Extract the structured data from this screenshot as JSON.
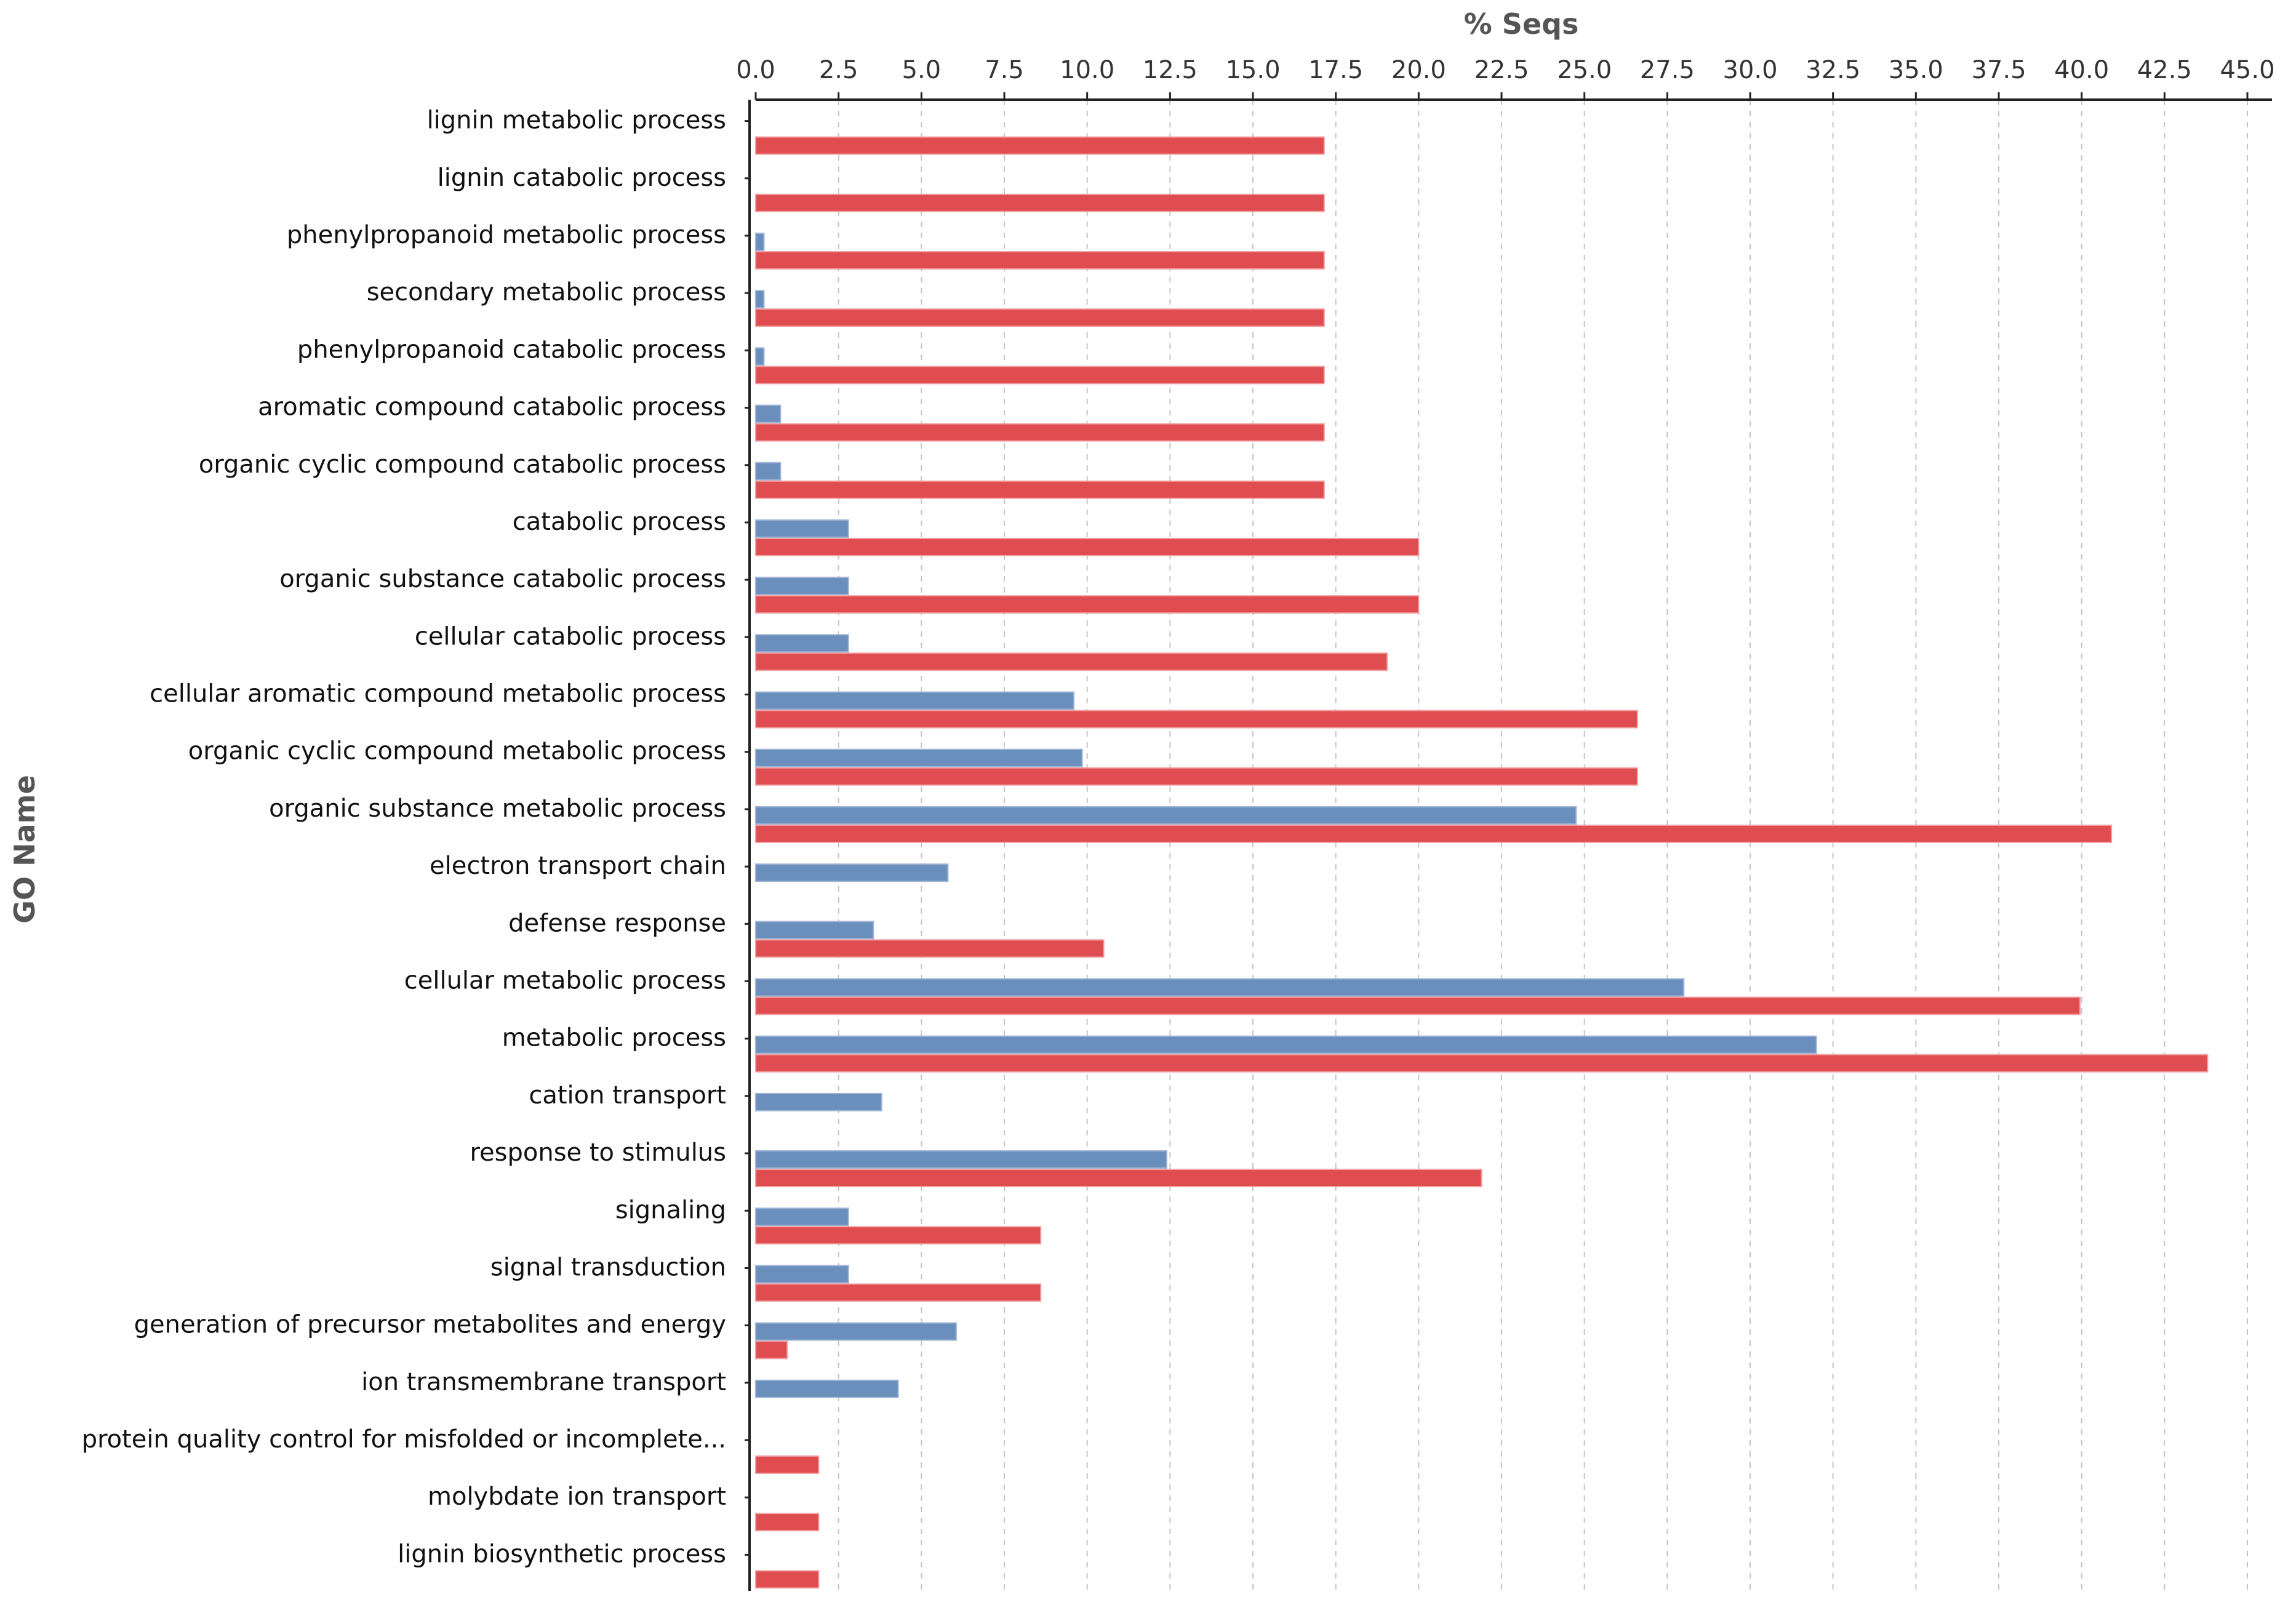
{
  "chart_data": {
    "type": "bar",
    "orientation": "horizontal",
    "xlabel": "% Seqs",
    "ylabel": "GO Name",
    "xlim": [
      0,
      45
    ],
    "xticks": [
      "0.0",
      "2.5",
      "5.0",
      "7.5",
      "10.0",
      "12.5",
      "15.0",
      "17.5",
      "20.0",
      "22.5",
      "25.0",
      "27.5",
      "30.0",
      "32.5",
      "35.0",
      "37.5",
      "40.0",
      "42.5",
      "45.0"
    ],
    "grid": "vertical dashed",
    "categories": [
      "lignin metabolic process",
      "lignin catabolic process",
      "phenylpropanoid metabolic process",
      "secondary metabolic process",
      "phenylpropanoid catabolic process",
      "aromatic compound catabolic process",
      "organic cyclic compound catabolic process",
      "catabolic process",
      "organic substance catabolic process",
      "cellular catabolic process",
      "cellular aromatic compound metabolic process",
      "organic cyclic compound metabolic process",
      "organic substance metabolic process",
      "electron transport chain",
      "defense response",
      "cellular metabolic process",
      "metabolic process",
      "cation transport",
      "response to stimulus",
      "signaling",
      "signal transduction",
      "generation of precursor metabolites and energy",
      "ion transmembrane transport",
      "protein quality control for misfolded or incomplete...",
      "molybdate ion transport",
      "lignin biosynthetic process"
    ],
    "series": [
      {
        "name": "blue",
        "color": "#6b8fbd",
        "values": [
          0,
          0,
          0.25,
          0.25,
          0.25,
          0.75,
          0.75,
          2.8,
          2.8,
          2.8,
          9.6,
          9.85,
          24.75,
          5.8,
          3.55,
          28,
          32,
          3.8,
          12.4,
          2.8,
          2.8,
          6.05,
          4.3,
          0,
          0,
          0
        ]
      },
      {
        "name": "red",
        "color": "#e04d50",
        "values": [
          17.15,
          17.15,
          17.15,
          17.15,
          17.15,
          17.15,
          17.15,
          20,
          20,
          19.05,
          26.6,
          26.6,
          40.9,
          0,
          10.5,
          39.95,
          43.8,
          0,
          21.9,
          8.6,
          8.6,
          0.95,
          0,
          1.9,
          1.9,
          1.9
        ]
      }
    ]
  }
}
